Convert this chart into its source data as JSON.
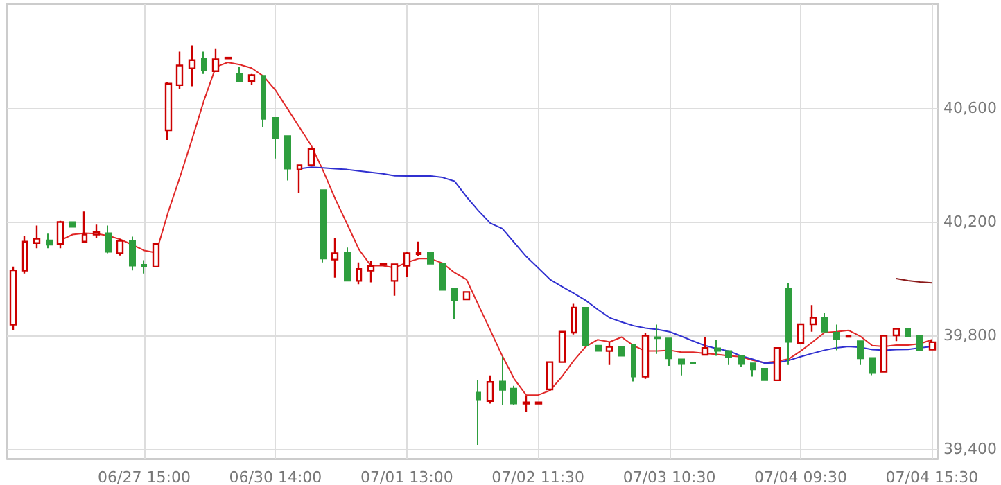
{
  "chart_data": {
    "type": "candlestick",
    "categories": [
      null,
      null,
      null,
      null,
      null,
      null,
      null,
      null,
      null,
      null,
      null,
      "06/27 15:00",
      null,
      null,
      null,
      null,
      null,
      null,
      null,
      null,
      null,
      null,
      "06/30 14:00",
      null,
      null,
      null,
      null,
      null,
      null,
      null,
      null,
      null,
      null,
      "07/01 13:00",
      null,
      null,
      null,
      null,
      null,
      null,
      null,
      null,
      null,
      null,
      "07/02 11:30",
      null,
      null,
      null,
      null,
      null,
      null,
      null,
      null,
      null,
      null,
      "07/03 10:30",
      null,
      null,
      null,
      null,
      null,
      null,
      null,
      null,
      null,
      null,
      "07/04 09:30",
      null,
      null,
      null,
      null,
      null,
      null,
      null,
      null,
      null,
      null,
      "07/04 15:30"
    ],
    "ohlc": [
      [
        39838,
        40042,
        39818,
        40029
      ],
      [
        40028,
        40151,
        40018,
        40130
      ],
      [
        40125,
        40187,
        40107,
        40140
      ],
      [
        40135,
        40158,
        40107,
        40119
      ],
      [
        40122,
        40203,
        40107,
        40199
      ],
      [
        40199,
        40199,
        40182,
        40182
      ],
      [
        40130,
        40236,
        40130,
        40155
      ],
      [
        40155,
        40190,
        40143,
        40164
      ],
      [
        40160,
        40187,
        40089,
        40094
      ],
      [
        40089,
        40140,
        40081,
        40133
      ],
      [
        40132,
        40148,
        40029,
        40045
      ],
      [
        40049,
        40065,
        40018,
        40042
      ],
      [
        40042,
        40125,
        40040,
        40122
      ],
      [
        40522,
        40691,
        40488,
        40686
      ],
      [
        40681,
        40799,
        40667,
        40750
      ],
      [
        40740,
        40821,
        40677,
        40769
      ],
      [
        40776,
        40799,
        40720,
        40733
      ],
      [
        40730,
        40808,
        40727,
        40772
      ],
      [
        40775,
        40778,
        40775,
        40778
      ],
      [
        40720,
        40745,
        40694,
        40694
      ],
      [
        40696,
        40720,
        40681,
        40716
      ],
      [
        40714,
        40714,
        40532,
        40562
      ],
      [
        40566,
        40566,
        40423,
        40493
      ],
      [
        40502,
        40502,
        40345,
        40387
      ],
      [
        40384,
        40399,
        40301,
        40399
      ],
      [
        40399,
        40457,
        40399,
        40457
      ],
      [
        40312,
        40312,
        40057,
        40070
      ],
      [
        40067,
        40143,
        40003,
        40089
      ],
      [
        40091,
        40109,
        39992,
        39992
      ],
      [
        39992,
        40057,
        39980,
        40034
      ],
      [
        40028,
        40062,
        39987,
        40044
      ],
      [
        40048,
        40052,
        40048,
        40052
      ],
      [
        39992,
        40050,
        39940,
        40050
      ],
      [
        40045,
        40094,
        40005,
        40089
      ],
      [
        40086,
        40130,
        40078,
        40090
      ],
      [
        40091,
        40091,
        40052,
        40052
      ],
      [
        40054,
        40054,
        39960,
        39960
      ],
      [
        39964,
        39964,
        39857,
        39923
      ],
      [
        39927,
        39953,
        39927,
        39953
      ],
      [
        39599,
        39642,
        39415,
        39572
      ],
      [
        39569,
        39659,
        39560,
        39636
      ],
      [
        39638,
        39725,
        39556,
        39608
      ],
      [
        39613,
        39623,
        39556,
        39560
      ],
      [
        39560,
        39587,
        39530,
        39564
      ],
      [
        39560,
        39565,
        39558,
        39564
      ],
      [
        39610,
        39708,
        39606,
        39706
      ],
      [
        39706,
        39815,
        39703,
        39813
      ],
      [
        39810,
        39911,
        39803,
        39898
      ],
      [
        39898,
        39898,
        39764,
        39764
      ],
      [
        39764,
        39764,
        39745,
        39745
      ],
      [
        39745,
        39777,
        39696,
        39760
      ],
      [
        39761,
        39761,
        39728,
        39728
      ],
      [
        39766,
        39766,
        39638,
        39655
      ],
      [
        39655,
        39810,
        39647,
        39799
      ],
      [
        39794,
        39838,
        39735,
        39790
      ],
      [
        39790,
        39790,
        39693,
        39719
      ],
      [
        39716,
        39716,
        39659,
        39699
      ],
      [
        39703,
        39703,
        39701,
        39701
      ],
      [
        39732,
        39794,
        39732,
        39756
      ],
      [
        39755,
        39784,
        39728,
        39745
      ],
      [
        39745,
        39745,
        39696,
        39723
      ],
      [
        39728,
        39728,
        39688,
        39699
      ],
      [
        39702,
        39702,
        39655,
        39680
      ],
      [
        39683,
        39683,
        39642,
        39642
      ],
      [
        39642,
        39756,
        39642,
        39756
      ],
      [
        39966,
        39984,
        39696,
        39777
      ],
      [
        39774,
        39841,
        39772,
        39839
      ],
      [
        39839,
        39907,
        39813,
        39862
      ],
      [
        39862,
        39878,
        39813,
        39813
      ],
      [
        39810,
        39838,
        39748,
        39787
      ],
      [
        39795,
        39799,
        39795,
        39799
      ],
      [
        39780,
        39780,
        39696,
        39719
      ],
      [
        39721,
        39721,
        39660,
        39667
      ],
      [
        39672,
        39799,
        39672,
        39799
      ],
      [
        39800,
        39823,
        39780,
        39823
      ],
      [
        39823,
        39826,
        39797,
        39797
      ],
      [
        39800,
        39800,
        39748,
        39748
      ],
      [
        39750,
        39785,
        39750,
        39776
      ]
    ],
    "colors": [
      "#cc0000",
      "#cc0000",
      "#cc0000",
      "#2e9e3e",
      "#cc0000",
      "#2e9e3e",
      "#cc0000",
      "#cc0000",
      "#2e9e3e",
      "#cc0000",
      "#2e9e3e",
      "#2e9e3e",
      "#cc0000",
      "#cc0000",
      "#cc0000",
      "#cc0000",
      "#2e9e3e",
      "#cc0000",
      "#cc0000",
      "#2e9e3e",
      "#cc0000",
      "#2e9e3e",
      "#2e9e3e",
      "#2e9e3e",
      "#cc0000",
      "#cc0000",
      "#2e9e3e",
      "#cc0000",
      "#2e9e3e",
      "#cc0000",
      "#cc0000",
      "#cc0000",
      "#cc0000",
      "#cc0000",
      "#cc0000",
      "#2e9e3e",
      "#2e9e3e",
      "#2e9e3e",
      "#cc0000",
      "#2e9e3e",
      "#cc0000",
      "#2e9e3e",
      "#2e9e3e",
      "#cc0000",
      "#cc0000",
      "#cc0000",
      "#cc0000",
      "#cc0000",
      "#2e9e3e",
      "#2e9e3e",
      "#cc0000",
      "#2e9e3e",
      "#2e9e3e",
      "#cc0000",
      "#2e9e3e",
      "#2e9e3e",
      "#2e9e3e",
      "#2e9e3e",
      "#cc0000",
      "#2e9e3e",
      "#2e9e3e",
      "#2e9e3e",
      "#2e9e3e",
      "#2e9e3e",
      "#cc0000",
      "#2e9e3e",
      "#cc0000",
      "#cc0000",
      "#2e9e3e",
      "#2e9e3e",
      "#cc0000",
      "#2e9e3e",
      "#2e9e3e",
      "#cc0000",
      "#cc0000",
      "#2e9e3e",
      "#2e9e3e",
      "#cc0000"
    ],
    "series": [
      {
        "type": "line",
        "color": "#e02828",
        "values": [
          null,
          null,
          null,
          null,
          40135,
          40155,
          40160,
          40158,
          40151,
          40138,
          40119,
          40099,
          40091,
          40233,
          40358,
          40489,
          40626,
          40745,
          40761,
          40753,
          40741,
          40712,
          40663,
          40598,
          40533,
          40468,
          40379,
          40281,
          40192,
          40102,
          40045,
          40045,
          40038,
          40057,
          40070,
          40070,
          40054,
          40021,
          39997,
          39907,
          39818,
          39728,
          39647,
          39590,
          39590,
          39606,
          39655,
          39712,
          39761,
          39785,
          39777,
          39794,
          39764,
          39745,
          39745,
          39748,
          39741,
          39741,
          39737,
          39733,
          39728,
          39725,
          39712,
          39704,
          39709,
          39717,
          39745,
          39777,
          39810,
          39813,
          39818,
          39797,
          39764,
          39761,
          39766,
          39766,
          39771,
          39785
        ]
      },
      {
        "type": "line",
        "color": "#3030d0",
        "values": [
          null,
          null,
          null,
          null,
          null,
          null,
          null,
          null,
          null,
          null,
          null,
          null,
          null,
          null,
          null,
          null,
          null,
          null,
          null,
          null,
          null,
          null,
          null,
          null,
          40387,
          40392,
          40390,
          40387,
          40384,
          40379,
          40374,
          40369,
          40362,
          40361,
          40361,
          40361,
          40356,
          40343,
          40288,
          40239,
          40195,
          40176,
          40127,
          40078,
          40038,
          39997,
          39972,
          39948,
          39923,
          39891,
          39862,
          39847,
          39834,
          39826,
          39821,
          39813,
          39797,
          39780,
          39764,
          39753,
          39745,
          39728,
          39716,
          39702,
          39704,
          39712,
          39725,
          39737,
          39748,
          39756,
          39761,
          39758,
          39750,
          39748,
          39750,
          39751,
          39756,
          39761
        ]
      },
      {
        "type": "line",
        "color": "#8b1a1a",
        "values": [
          null,
          null,
          null,
          null,
          null,
          null,
          null,
          null,
          null,
          null,
          null,
          null,
          null,
          null,
          null,
          null,
          null,
          null,
          null,
          null,
          null,
          null,
          null,
          null,
          null,
          null,
          null,
          null,
          null,
          null,
          null,
          null,
          null,
          null,
          null,
          null,
          null,
          null,
          null,
          null,
          null,
          null,
          null,
          null,
          null,
          null,
          null,
          null,
          null,
          null,
          null,
          null,
          null,
          null,
          null,
          null,
          null,
          null,
          null,
          null,
          null,
          null,
          null,
          null,
          null,
          null,
          null,
          null,
          null,
          null,
          null,
          null,
          null,
          null,
          40000,
          39993,
          39988,
          39985
        ]
      }
    ],
    "ylim": [
      39366,
      40966
    ],
    "yticks": [
      {
        "value": 39400,
        "label": "39,400"
      },
      {
        "value": 39800,
        "label": "39,800"
      },
      {
        "value": 40200,
        "label": "40,200"
      },
      {
        "value": 40600,
        "label": "40,600"
      }
    ],
    "grid": true,
    "marker": "none",
    "line_style": "solid"
  }
}
